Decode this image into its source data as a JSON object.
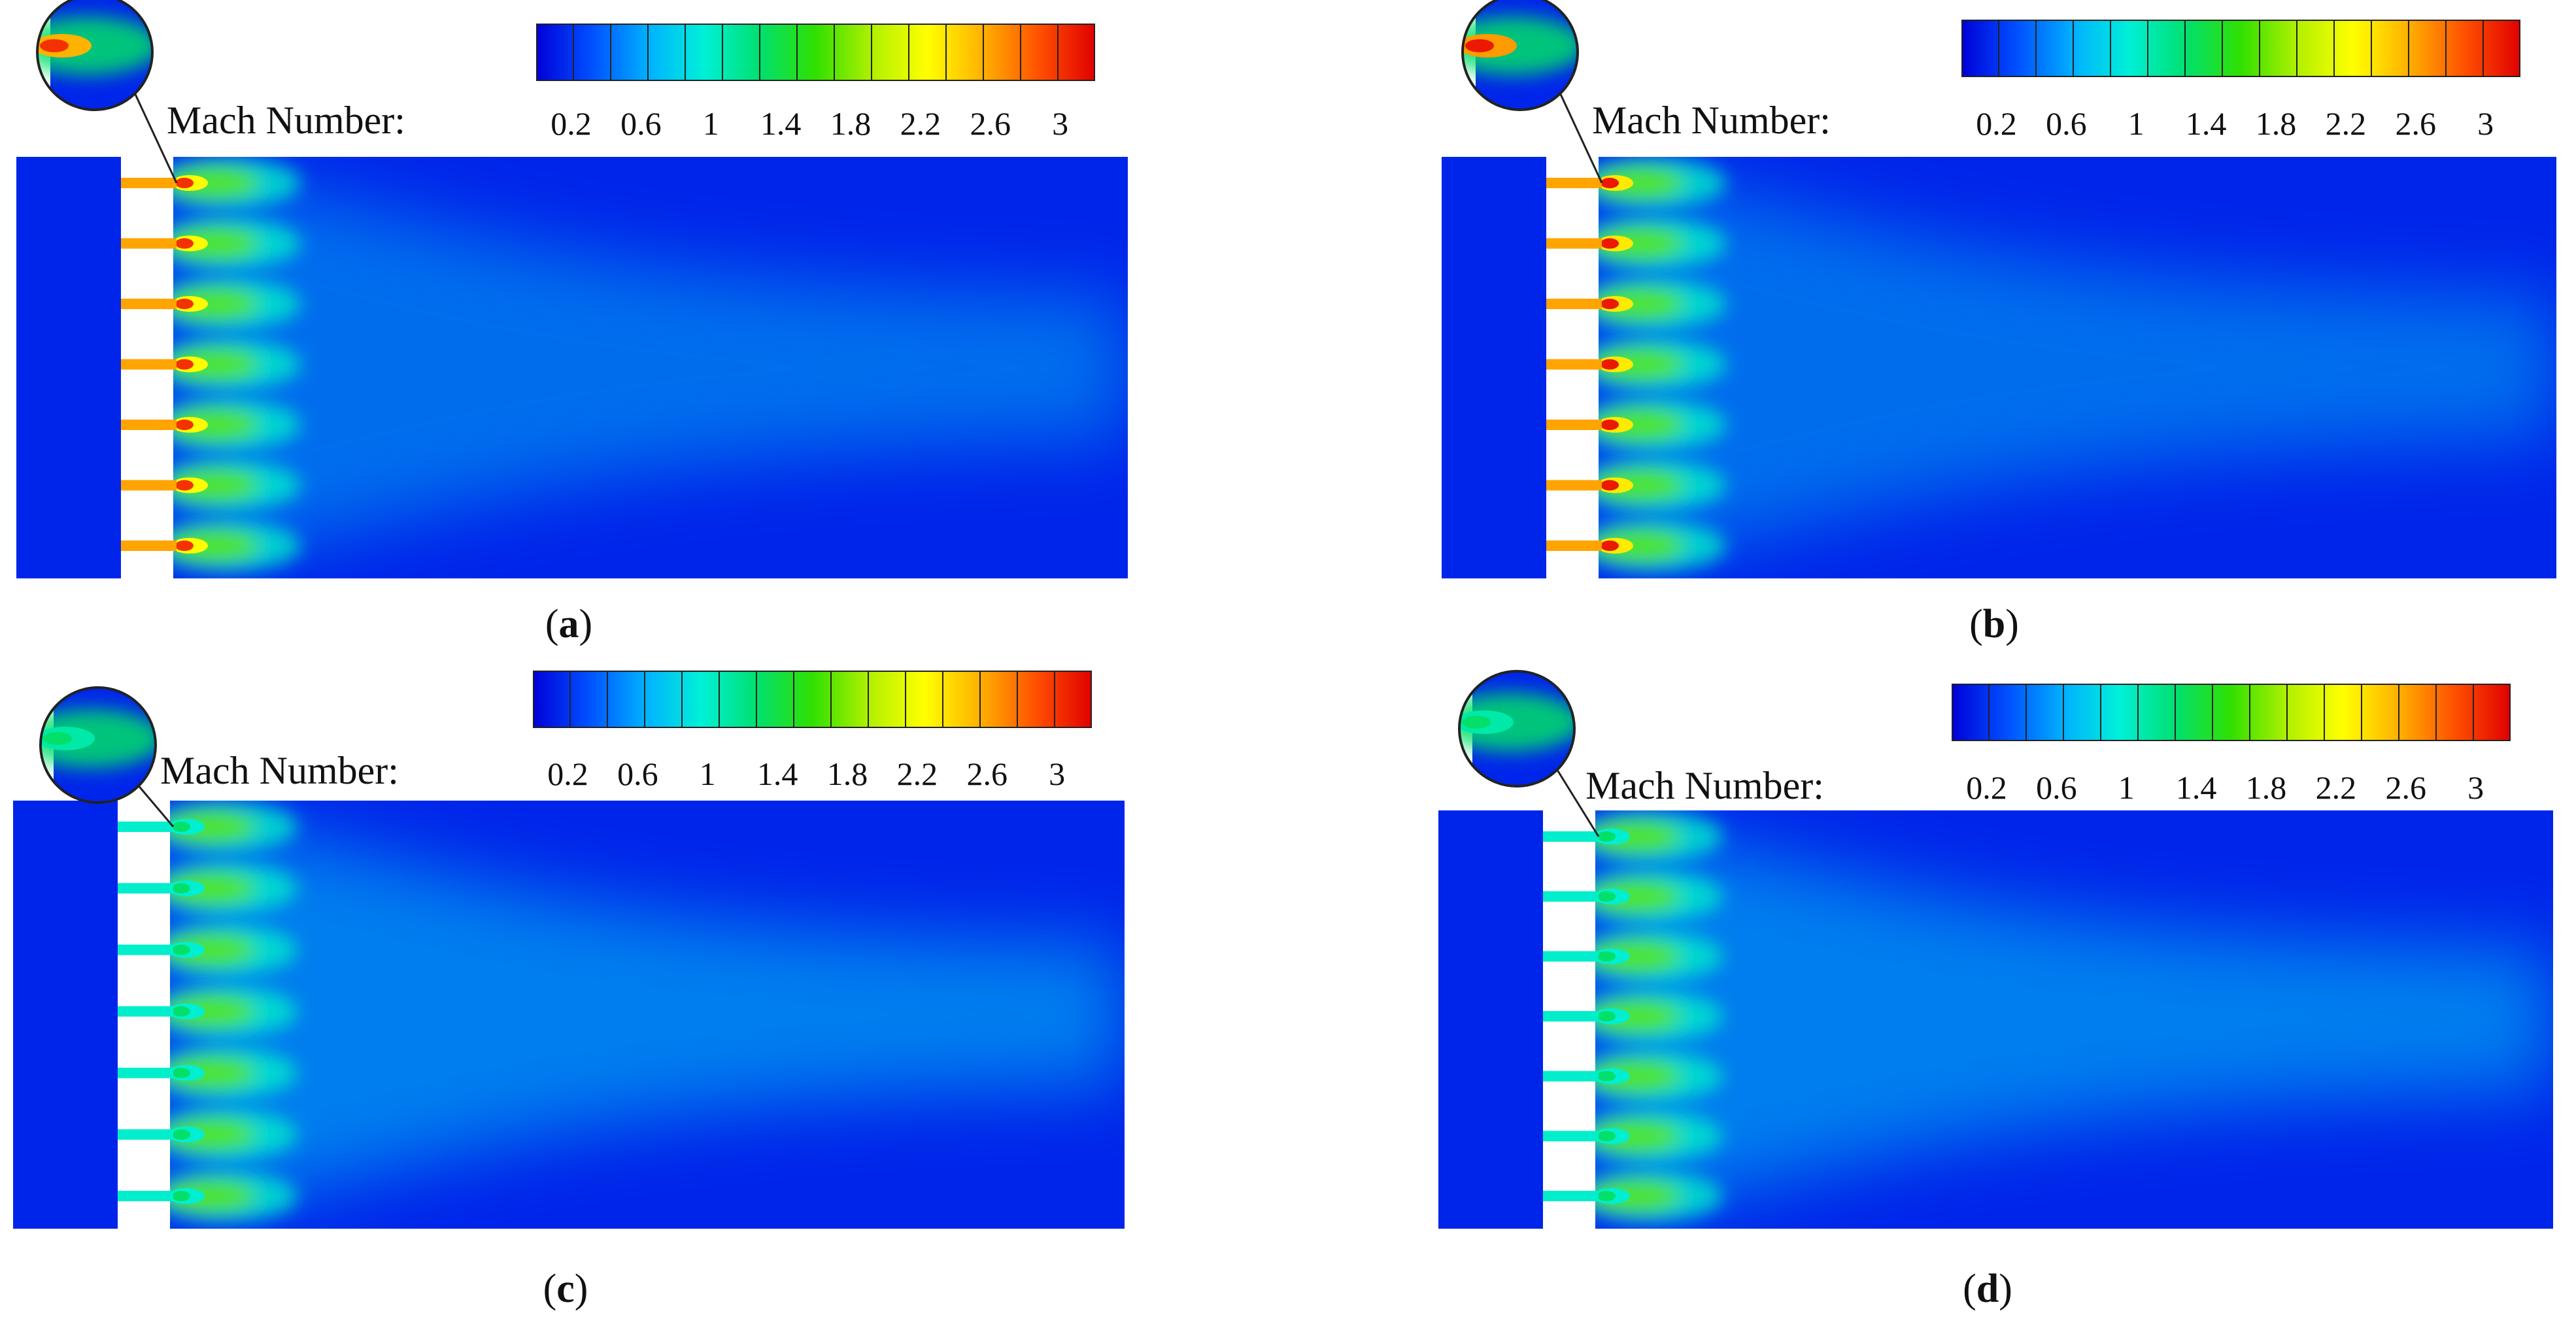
{
  "figure": {
    "colorbar": {
      "label": "Mach Number:",
      "ticks": [
        "0.2",
        "0.6",
        "1",
        "1.4",
        "1.8",
        "2.2",
        "2.6",
        "3"
      ],
      "range": [
        0,
        3.2
      ],
      "levels": 15,
      "colormap": [
        "#0000d8",
        "#0050ff",
        "#00b0ff",
        "#00f0d8",
        "#00e070",
        "#30e000",
        "#b0f000",
        "#ffff00",
        "#ffb000",
        "#ff5000",
        "#e00000"
      ]
    },
    "panels": [
      {
        "id": "a",
        "caption_letter": "a",
        "jets_per_panel": 7,
        "inlet_core_mach": 3.0,
        "inlet_style": "orange"
      },
      {
        "id": "b",
        "caption_letter": "b",
        "jets_per_panel": 7,
        "inlet_core_mach": 3.1,
        "inlet_style": "orange"
      },
      {
        "id": "c",
        "caption_letter": "c",
        "jets_per_panel": 7,
        "inlet_core_mach": 1.3,
        "inlet_style": "cyan"
      },
      {
        "id": "d",
        "caption_letter": "d",
        "jets_per_panel": 7,
        "inlet_core_mach": 1.3,
        "inlet_style": "cyan"
      }
    ]
  }
}
